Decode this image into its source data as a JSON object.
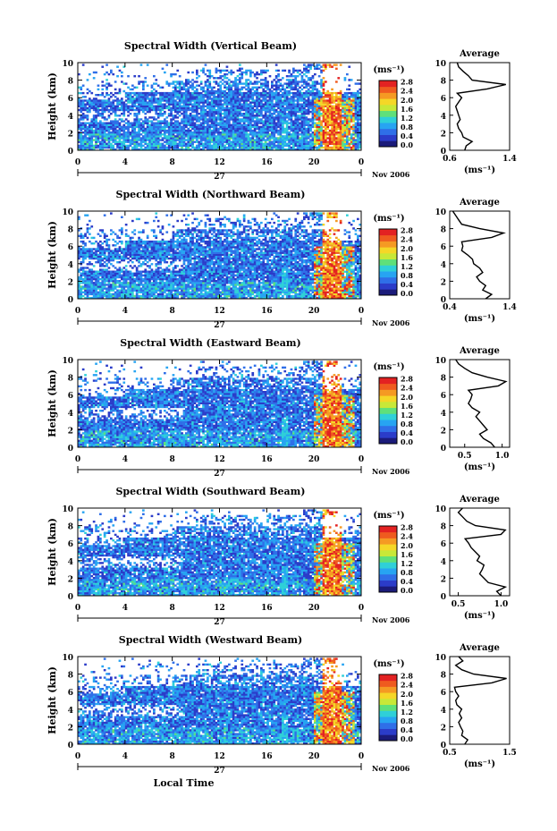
{
  "colors": {
    "colormap": [
      "#1b1b7a",
      "#2b3cc9",
      "#2f6fe8",
      "#27a4f2",
      "#2fd0d8",
      "#5fe07a",
      "#c8e838",
      "#f5d727",
      "#f59a23",
      "#ef5b1f",
      "#e32222"
    ],
    "line": "#000000",
    "background": "#ffffff"
  },
  "common": {
    "y_label": "Height (km)",
    "x_label": "Local Time",
    "unit_label": "(ms⁻¹)",
    "date_left": "27",
    "date_right": "Nov 2006",
    "avg_title": "Average",
    "avg_xlabel": "(ms⁻¹)"
  },
  "chart_data": [
    {
      "type": "heatmap",
      "title": "Spectral Width (Vertical Beam)",
      "ylim": [
        0,
        10
      ],
      "y_ticks": [
        "0",
        "2",
        "4",
        "6",
        "8",
        "10"
      ],
      "xlim": [
        0,
        24
      ],
      "x_ticks": [
        "0",
        "4",
        "8",
        "12",
        "16",
        "20",
        "0"
      ],
      "colorbar_ticks": [
        "0.0",
        "0.4",
        "0.8",
        "1.2",
        "1.6",
        "2.0",
        "2.4",
        "2.8"
      ],
      "colorbar_range": [
        0,
        2.8
      ],
      "average": {
        "xlim": [
          0.6,
          1.4
        ],
        "x_ticks": [
          "0.6",
          "1.4"
        ],
        "heights": [
          0,
          0.5,
          1,
          1.5,
          2,
          2.5,
          3,
          3.5,
          4,
          4.5,
          5,
          5.5,
          6,
          6.5,
          7,
          7.5,
          8,
          8.5,
          9,
          9.5,
          10
        ],
        "values": [
          0.8,
          0.82,
          0.9,
          0.78,
          0.76,
          0.72,
          0.7,
          0.74,
          0.72,
          0.7,
          0.68,
          0.72,
          0.76,
          0.7,
          1.1,
          1.35,
          0.9,
          0.85,
          0.78,
          0.72,
          0.7
        ]
      }
    },
    {
      "type": "heatmap",
      "title": "Spectral Width (Northward Beam)",
      "ylim": [
        0,
        10
      ],
      "y_ticks": [
        "0",
        "2",
        "4",
        "6",
        "8",
        "10"
      ],
      "xlim": [
        0,
        24
      ],
      "x_ticks": [
        "0",
        "4",
        "8",
        "12",
        "16",
        "20",
        "0"
      ],
      "colorbar_ticks": [
        "0.0",
        "0.4",
        "0.8",
        "1.2",
        "1.6",
        "2.0",
        "2.4",
        "2.8"
      ],
      "colorbar_range": [
        0,
        2.8
      ],
      "average": {
        "xlim": [
          0.4,
          1.4
        ],
        "x_ticks": [
          "0.4",
          "1.4"
        ],
        "heights": [
          0,
          0.5,
          1,
          1.5,
          2,
          2.5,
          3,
          3.5,
          4,
          4.5,
          5,
          5.5,
          6,
          6.5,
          7,
          7.5,
          8,
          8.5,
          9,
          9.5,
          10
        ],
        "values": [
          1.0,
          1.1,
          0.95,
          1.0,
          0.9,
          0.85,
          0.95,
          0.9,
          0.8,
          0.78,
          0.7,
          0.6,
          0.62,
          0.6,
          1.1,
          1.3,
          0.9,
          0.6,
          0.55,
          0.5,
          0.45
        ]
      }
    },
    {
      "type": "heatmap",
      "title": "Spectral Width (Eastward Beam)",
      "ylim": [
        0,
        10
      ],
      "y_ticks": [
        "0",
        "2",
        "4",
        "6",
        "8",
        "10"
      ],
      "xlim": [
        0,
        24
      ],
      "x_ticks": [
        "0",
        "4",
        "8",
        "12",
        "16",
        "20",
        "0"
      ],
      "colorbar_ticks": [
        "0.0",
        "0.4",
        "0.8",
        "1.2",
        "1.6",
        "2.0",
        "2.4",
        "2.8"
      ],
      "colorbar_range": [
        0,
        2.8
      ],
      "average": {
        "xlim": [
          0.3,
          1.1
        ],
        "x_ticks": [
          "0.5",
          "1.0"
        ],
        "heights": [
          0,
          0.5,
          1,
          1.5,
          2,
          2.5,
          3,
          3.5,
          4,
          4.5,
          5,
          5.5,
          6,
          6.5,
          7,
          7.5,
          8,
          8.5,
          9,
          9.5,
          10
        ],
        "values": [
          0.9,
          0.85,
          0.75,
          0.7,
          0.8,
          0.75,
          0.7,
          0.65,
          0.7,
          0.6,
          0.55,
          0.58,
          0.6,
          0.55,
          0.95,
          1.05,
          0.8,
          0.6,
          0.5,
          0.42,
          0.38
        ]
      }
    },
    {
      "type": "heatmap",
      "title": "Spectral Width (Southward Beam)",
      "ylim": [
        0,
        10
      ],
      "y_ticks": [
        "0",
        "2",
        "4",
        "6",
        "8",
        "10"
      ],
      "xlim": [
        0,
        24
      ],
      "x_ticks": [
        "0",
        "4",
        "8",
        "12",
        "16",
        "20",
        "0"
      ],
      "colorbar_ticks": [
        "0.0",
        "0.4",
        "0.8",
        "1.2",
        "1.6",
        "2.0",
        "2.4",
        "2.8"
      ],
      "colorbar_range": [
        0,
        2.8
      ],
      "average": {
        "xlim": [
          0.4,
          1.1
        ],
        "x_ticks": [
          "0.5",
          "1.0"
        ],
        "heights": [
          0,
          0.5,
          1,
          1.5,
          2,
          2.5,
          3,
          3.5,
          4,
          4.5,
          5,
          5.5,
          6,
          6.5,
          7,
          7.5,
          8,
          8.5,
          9,
          9.5,
          10
        ],
        "values": [
          1.0,
          0.95,
          1.05,
          0.85,
          0.8,
          0.75,
          0.78,
          0.8,
          0.72,
          0.75,
          0.7,
          0.65,
          0.62,
          0.58,
          1.0,
          1.05,
          0.7,
          0.6,
          0.55,
          0.5,
          0.55
        ]
      }
    },
    {
      "type": "heatmap",
      "title": "Spectral Width (Westward Beam)",
      "ylim": [
        0,
        10
      ],
      "y_ticks": [
        "0",
        "2",
        "4",
        "6",
        "8",
        "10"
      ],
      "xlim": [
        0,
        24
      ],
      "x_ticks": [
        "0",
        "4",
        "8",
        "12",
        "16",
        "20",
        "0"
      ],
      "colorbar_ticks": [
        "0.0",
        "0.4",
        "0.8",
        "1.2",
        "1.6",
        "2.0",
        "2.4",
        "2.8"
      ],
      "colorbar_range": [
        0,
        2.8
      ],
      "average": {
        "xlim": [
          0.5,
          1.5
        ],
        "x_ticks": [
          "0.5",
          "1.5"
        ],
        "heights": [
          0,
          0.5,
          1,
          1.5,
          2,
          2.5,
          3,
          3.5,
          4,
          4.5,
          5,
          5.5,
          6,
          6.5,
          7,
          7.5,
          8,
          8.5,
          9,
          9.5,
          10
        ],
        "values": [
          0.75,
          0.8,
          0.7,
          0.72,
          0.68,
          0.65,
          0.7,
          0.66,
          0.7,
          0.62,
          0.6,
          0.65,
          0.6,
          0.58,
          1.2,
          1.45,
          0.9,
          0.7,
          0.6,
          0.72,
          0.65
        ]
      }
    }
  ]
}
